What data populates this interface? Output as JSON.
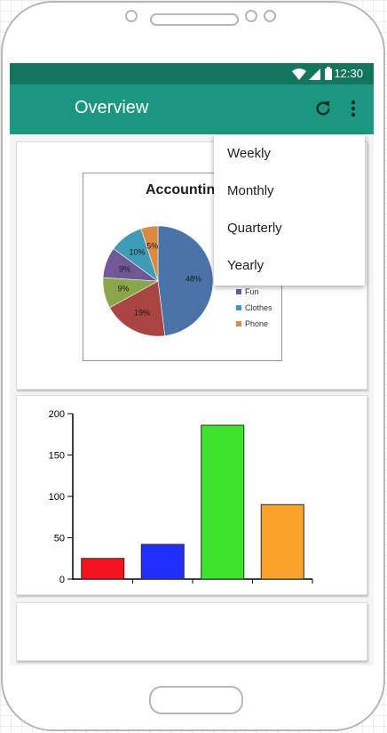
{
  "status": {
    "time": "12:30"
  },
  "appbar": {
    "title": "Overview",
    "refresh_icon": "refresh-icon",
    "more_icon": "more-vert-icon"
  },
  "menu": {
    "items": [
      {
        "label": "Weekly"
      },
      {
        "label": "Monthly"
      },
      {
        "label": "Quarterly"
      },
      {
        "label": "Yearly"
      }
    ]
  },
  "pie_chart": {
    "title": "Accounting",
    "slices": [
      {
        "label": "48%",
        "value": 48,
        "color": "#4a74a8"
      },
      {
        "label": "19%",
        "value": 19,
        "color": "#a94443"
      },
      {
        "label": "9%",
        "value": 9,
        "color": "#8aa64a"
      },
      {
        "label": "9%",
        "value": 9,
        "color": "#6e5895"
      },
      {
        "label": "10%",
        "value": 10,
        "color": "#3f9bb6"
      },
      {
        "label": "5%",
        "value": 5,
        "color": "#d98a43"
      }
    ],
    "legend": [
      {
        "label": "Fun",
        "color": "#6e5895"
      },
      {
        "label": "Clothes",
        "color": "#3f9bb6"
      },
      {
        "label": "Phone",
        "color": "#d98a43"
      }
    ]
  },
  "chart_data": {
    "type": "bar",
    "categories": [
      "",
      "",
      "",
      ""
    ],
    "values": [
      25,
      42,
      186,
      90
    ],
    "colors": [
      "#f4131f",
      "#2130ff",
      "#3de52c",
      "#fba22c"
    ],
    "yticks": [
      "0",
      "50",
      "100",
      "150",
      "200"
    ],
    "ylim": [
      0,
      200
    ],
    "title": "",
    "xlabel": "",
    "ylabel": ""
  }
}
